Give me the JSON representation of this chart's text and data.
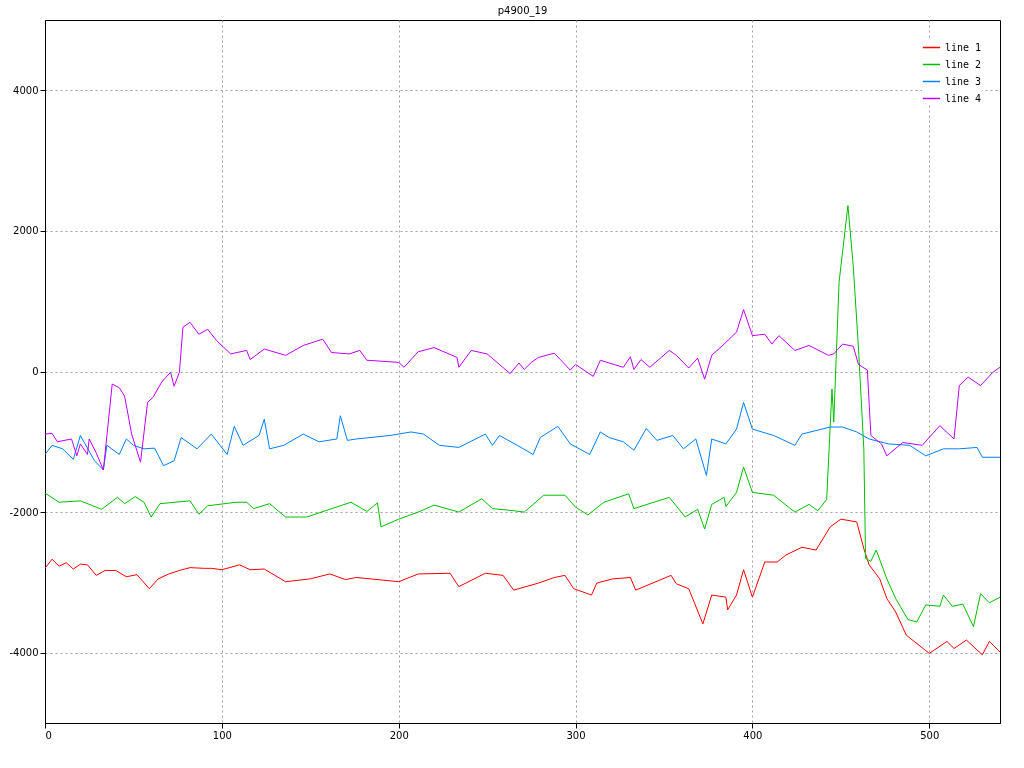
{
  "chart_data": {
    "type": "line",
    "title": "p4900_19",
    "xlim": [
      0,
      540
    ],
    "ylim": [
      -5000,
      5000
    ],
    "xticks": [
      0,
      100,
      200,
      300,
      400,
      500
    ],
    "yticks": [
      -4000,
      -2000,
      0,
      2000,
      4000
    ],
    "grid": true,
    "legend": "top right",
    "series": [
      {
        "name": "line 1",
        "color": "#ff0000",
        "x": [
          0,
          4,
          8,
          12,
          16,
          20,
          24,
          29,
          34,
          40,
          46,
          52,
          59,
          64,
          70,
          76,
          82,
          90,
          94,
          100,
          110,
          116,
          124,
          136,
          150,
          161,
          170,
          176,
          200,
          211,
          229,
          234,
          249,
          259,
          265,
          279,
          288,
          294,
          299,
          309,
          312,
          321,
          331,
          334,
          354,
          357,
          364,
          372,
          377,
          385,
          386,
          391,
          395,
          400,
          407,
          414,
          419,
          428,
          436,
          444,
          450,
          459,
          463,
          466,
          472,
          476,
          481,
          487,
          493,
          500,
          510,
          514,
          521,
          530,
          534,
          540
        ],
        "values": [
          -2800,
          -2670,
          -2770,
          -2720,
          -2810,
          -2740,
          -2750,
          -2900,
          -2830,
          -2830,
          -2920,
          -2890,
          -3090,
          -2950,
          -2880,
          -2830,
          -2790,
          -2800,
          -2800,
          -2820,
          -2750,
          -2820,
          -2810,
          -2990,
          -2950,
          -2880,
          -2960,
          -2930,
          -2990,
          -2880,
          -2870,
          -3060,
          -2870,
          -2900,
          -3110,
          -3010,
          -2930,
          -2900,
          -3090,
          -3180,
          -3010,
          -2950,
          -2930,
          -3110,
          -2900,
          -3020,
          -3090,
          -3590,
          -3180,
          -3210,
          -3390,
          -3180,
          -2820,
          -3210,
          -2710,
          -2710,
          -2610,
          -2500,
          -2540,
          -2210,
          -2100,
          -2140,
          -2520,
          -2750,
          -2950,
          -3230,
          -3420,
          -3750,
          -3870,
          -4010,
          -3840,
          -3940,
          -3820,
          -4030,
          -3840,
          -3990
        ]
      },
      {
        "name": "line 2",
        "color": "#00c000",
        "x": [
          0,
          8,
          20,
          32,
          41,
          45,
          51,
          56,
          60,
          65,
          82,
          87,
          92,
          108,
          114,
          118,
          127,
          136,
          148,
          161,
          173,
          182,
          188,
          190,
          200,
          211,
          220,
          234,
          247,
          253,
          265,
          271,
          282,
          294,
          300,
          307,
          316,
          330,
          333,
          353,
          362,
          369,
          373,
          377,
          384,
          385,
          391,
          395,
          400,
          412,
          419,
          424,
          432,
          437,
          442,
          445,
          446,
          449,
          454,
          457,
          460,
          463,
          464,
          467,
          470,
          476,
          481,
          488,
          493,
          498,
          506,
          508,
          513,
          519,
          525,
          529,
          534,
          540
        ],
        "values": [
          -1730,
          -1860,
          -1840,
          -1960,
          -1790,
          -1880,
          -1780,
          -1860,
          -2070,
          -1880,
          -1840,
          -2030,
          -1910,
          -1860,
          -1860,
          -1950,
          -1880,
          -2070,
          -2070,
          -1960,
          -1860,
          -1990,
          -1870,
          -2210,
          -2100,
          -2000,
          -1900,
          -2000,
          -1810,
          -1950,
          -1980,
          -2000,
          -1760,
          -1760,
          -1930,
          -2040,
          -1860,
          -1740,
          -1950,
          -1790,
          -2070,
          -1960,
          -2240,
          -1890,
          -1790,
          -1920,
          -1720,
          -1360,
          -1720,
          -1760,
          -1900,
          -2000,
          -1890,
          -1980,
          -1820,
          -250,
          -720,
          1270,
          2360,
          1510,
          320,
          -1100,
          -2660,
          -2700,
          -2540,
          -2950,
          -3230,
          -3530,
          -3560,
          -3320,
          -3340,
          -3180,
          -3340,
          -3310,
          -3630,
          -3160,
          -3290,
          -3210
        ]
      },
      {
        "name": "line 3",
        "color": "#0080ff",
        "x": [
          0,
          4,
          10,
          16,
          20,
          28,
          33,
          35,
          42,
          46,
          50,
          56,
          62,
          67,
          73,
          77,
          86,
          94,
          103,
          107,
          112,
          121,
          124,
          127,
          135,
          146,
          155,
          165,
          167,
          171,
          176,
          195,
          207,
          214,
          223,
          234,
          249,
          253,
          257,
          267,
          276,
          280,
          290,
          297,
          308,
          314,
          319,
          327,
          333,
          340,
          346,
          355,
          361,
          368,
          374,
          377,
          385,
          391,
          395,
          400,
          412,
          424,
          428,
          444,
          451,
          459,
          466,
          477,
          489,
          498,
          508,
          517,
          527,
          530,
          540
        ],
        "values": [
          -1180,
          -1050,
          -1100,
          -1250,
          -910,
          -1270,
          -1400,
          -1050,
          -1180,
          -960,
          -1050,
          -1100,
          -1090,
          -1340,
          -1270,
          -940,
          -1100,
          -890,
          -1180,
          -780,
          -1050,
          -910,
          -680,
          -1100,
          -1050,
          -890,
          -1000,
          -960,
          -630,
          -980,
          -960,
          -910,
          -860,
          -890,
          -1050,
          -1080,
          -890,
          -1050,
          -910,
          -1050,
          -1180,
          -940,
          -780,
          -1030,
          -1180,
          -860,
          -940,
          -1000,
          -1120,
          -810,
          -980,
          -910,
          -1100,
          -960,
          -1480,
          -960,
          -1030,
          -820,
          -440,
          -820,
          -910,
          -1050,
          -890,
          -790,
          -790,
          -860,
          -960,
          -1030,
          -1050,
          -1200,
          -1100,
          -1100,
          -1080,
          -1220,
          -1220
        ]
      },
      {
        "name": "line 4",
        "color": "#c000ff",
        "x": [
          0,
          4,
          7,
          15,
          18,
          20,
          24,
          25,
          29,
          33,
          38,
          42,
          45,
          49,
          54,
          58,
          61,
          66,
          71,
          73,
          76,
          78,
          82,
          87,
          92,
          97,
          105,
          114,
          116,
          124,
          136,
          146,
          157,
          162,
          172,
          178,
          182,
          200,
          203,
          211,
          220,
          233,
          234,
          241,
          250,
          263,
          268,
          271,
          275,
          279,
          288,
          297,
          300,
          310,
          314,
          327,
          331,
          333,
          337,
          342,
          353,
          357,
          364,
          369,
          373,
          377,
          384,
          391,
          395,
          400,
          407,
          411,
          415,
          424,
          432,
          443,
          446,
          451,
          457,
          460,
          465,
          467,
          473,
          476,
          485,
          496,
          506,
          514,
          517,
          522,
          529,
          536,
          540
        ],
        "values": [
          -890,
          -880,
          -1000,
          -960,
          -1200,
          -1030,
          -1180,
          -960,
          -1160,
          -1400,
          -180,
          -230,
          -350,
          -890,
          -1290,
          -440,
          -370,
          -150,
          -10,
          -210,
          -10,
          630,
          700,
          530,
          600,
          440,
          250,
          300,
          170,
          320,
          230,
          370,
          460,
          270,
          250,
          300,
          160,
          130,
          60,
          280,
          340,
          200,
          60,
          300,
          250,
          -30,
          120,
          30,
          130,
          200,
          260,
          20,
          100,
          -70,
          160,
          60,
          210,
          30,
          170,
          60,
          300,
          230,
          50,
          190,
          -110,
          230,
          390,
          560,
          880,
          510,
          530,
          390,
          510,
          300,
          370,
          230,
          250,
          390,
          360,
          100,
          20,
          -910,
          -1030,
          -1200,
          -1010,
          -1050,
          -770,
          -960,
          -200,
          -80,
          -200,
          -10,
          60
        ]
      }
    ]
  }
}
